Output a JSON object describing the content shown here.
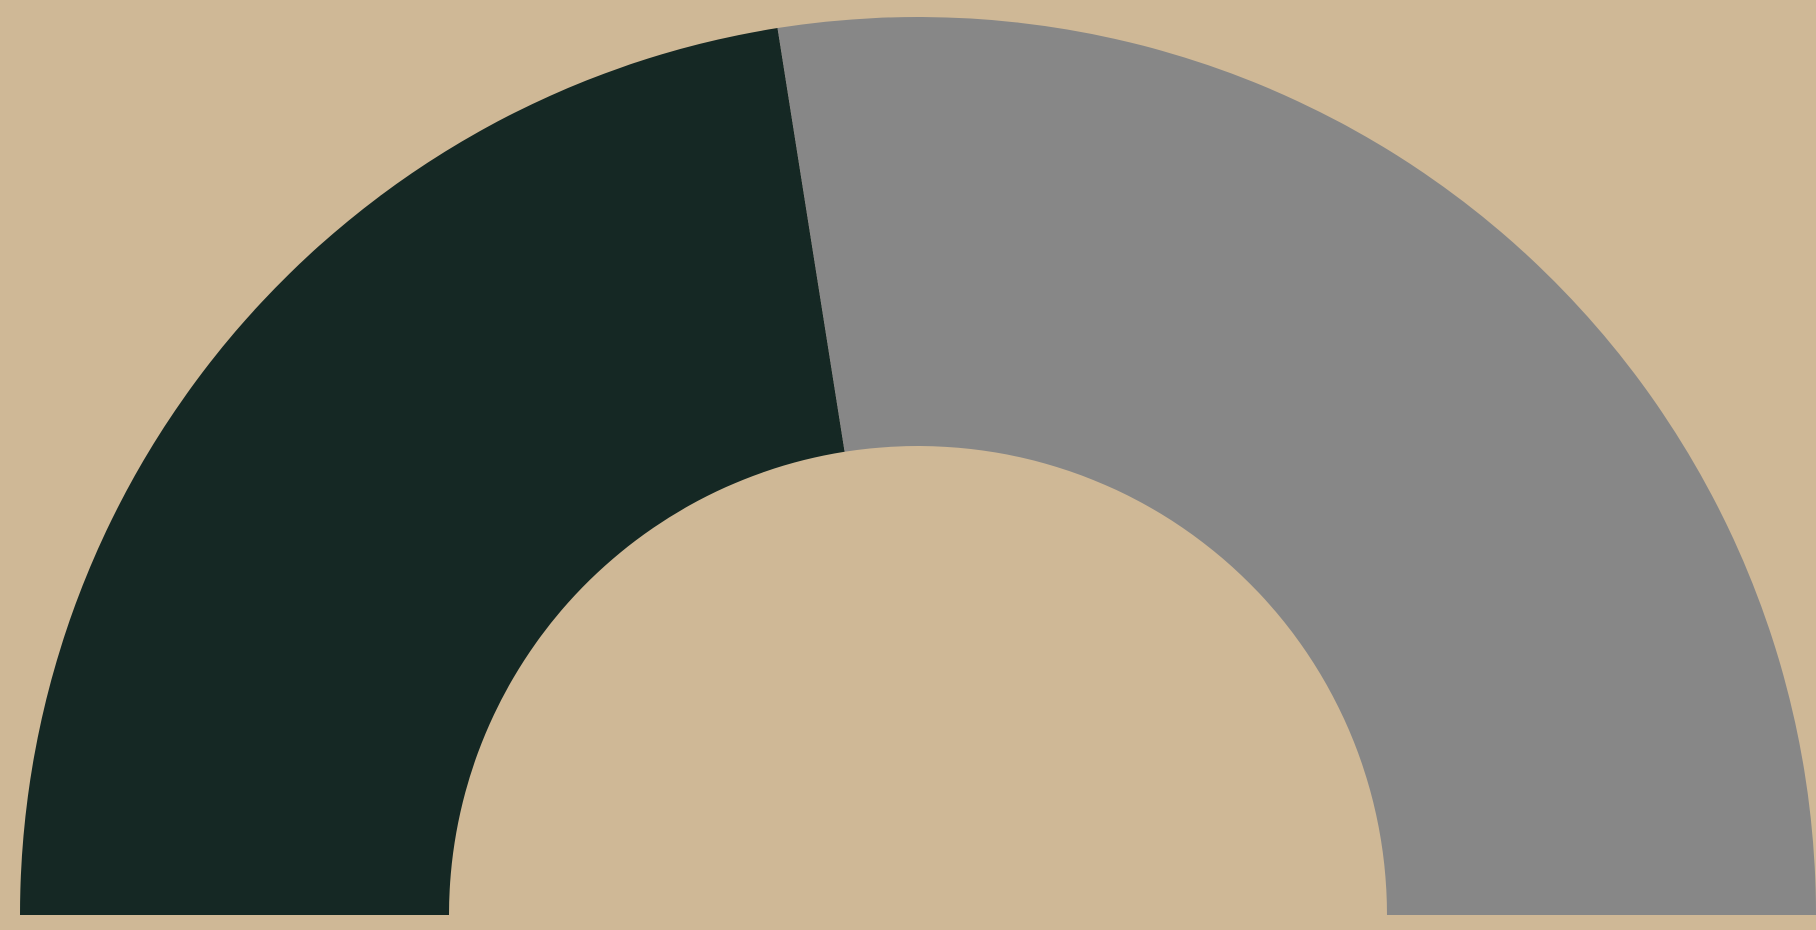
{
  "chart_data": {
    "type": "gauge",
    "value": 0.45,
    "range": [
      0,
      1
    ],
    "arc": "semicircle",
    "colors": {
      "background": "#cfb896",
      "fill": "#152824",
      "remainder": "#878787"
    }
  }
}
